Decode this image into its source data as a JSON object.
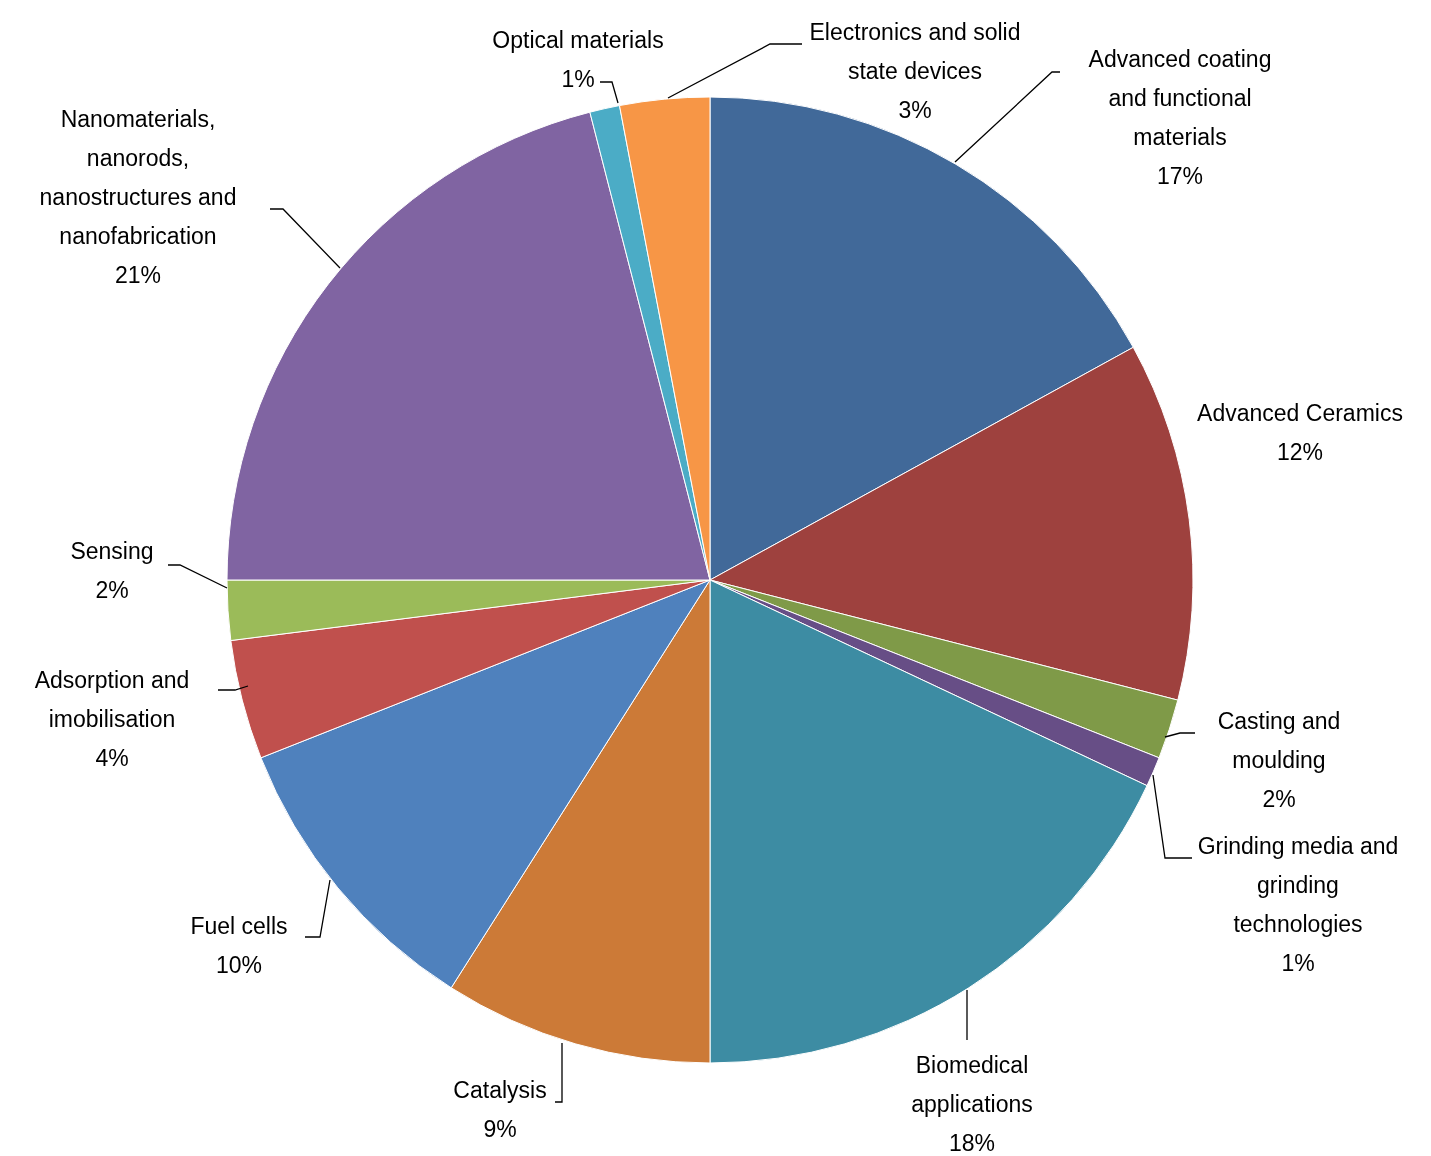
{
  "chart_data": {
    "type": "pie",
    "categories": [
      "Advanced coating and functional materials",
      "Advanced Ceramics",
      "Casting and moulding",
      "Grinding media and grinding technologies",
      "Biomedical applications",
      "Catalysis",
      "Fuel cells",
      "Adsorption and imobilisation",
      "Sensing",
      "Nanomaterials, nanorods, nanostructures and nanofabrication",
      "Optical materials",
      "Electronics and solid state devices"
    ],
    "values": [
      17,
      12,
      2,
      1,
      18,
      9,
      10,
      4,
      2,
      21,
      1,
      3
    ],
    "value_labels": [
      "17%",
      "12%",
      "2%",
      "1%",
      "18%",
      "9%",
      "10%",
      "4%",
      "2%",
      "21%",
      "1%",
      "3%"
    ],
    "colors": [
      "#416999",
      "#9e413e",
      "#7f9a48",
      "#674e86",
      "#3d8ca3",
      "#cc7a37",
      "#4f81bd",
      "#c0504d",
      "#9bbb59",
      "#8064a2",
      "#4bacc6",
      "#f79646"
    ]
  }
}
